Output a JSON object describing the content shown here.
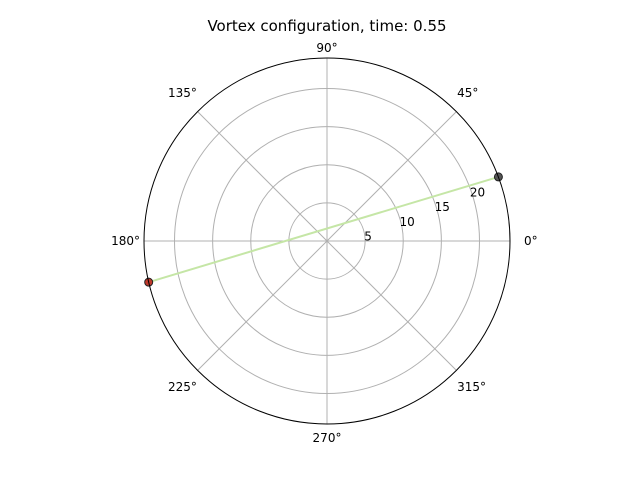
{
  "chart_data": {
    "type": "scatter",
    "projection": "polar",
    "title": "Vortex configuration, time: 0.55",
    "theta_ticks": [
      "0°",
      "45°",
      "90°",
      "135°",
      "180°",
      "225°",
      "270°",
      "315°"
    ],
    "theta_tick_degrees": [
      0,
      45,
      90,
      135,
      180,
      225,
      270,
      315
    ],
    "r_ticks": [
      "5",
      "10",
      "15",
      "20"
    ],
    "r_tick_values": [
      5,
      10,
      15,
      20
    ],
    "rlim": [
      0,
      24
    ],
    "grid": true,
    "points": [
      {
        "theta_deg": 20.5,
        "r": 24,
        "color": "#555555"
      },
      {
        "theta_deg": 193.0,
        "r": 24,
        "color": "#c0392b"
      }
    ],
    "line": {
      "from": 0,
      "to": 1,
      "color": "#c5e6a6"
    }
  }
}
